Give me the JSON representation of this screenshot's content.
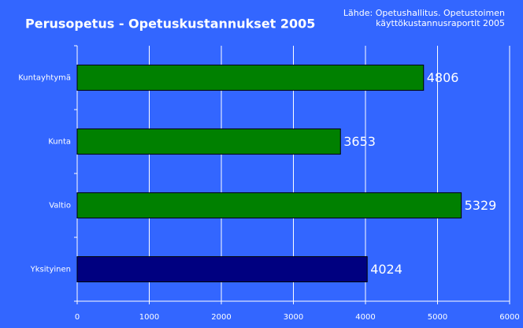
{
  "chart_data": {
    "type": "bar",
    "orientation": "horizontal",
    "title": "Perusopetus - Opetuskustannukset 2005",
    "source": [
      "Lähde: Opetushallitus. Opetustoimen",
      "käyttökustannusraportit 2005"
    ],
    "categories": [
      "Kuntayhtymä",
      "Kunta",
      "Valtio",
      "Yksityinen"
    ],
    "values": [
      4806,
      3653,
      5329,
      4024
    ],
    "colors": [
      "#008000",
      "#008000",
      "#008000",
      "#000080"
    ],
    "xlim": [
      0,
      6000
    ],
    "xticks": [
      0,
      1000,
      2000,
      3000,
      4000,
      5000,
      6000
    ],
    "grid": true
  }
}
